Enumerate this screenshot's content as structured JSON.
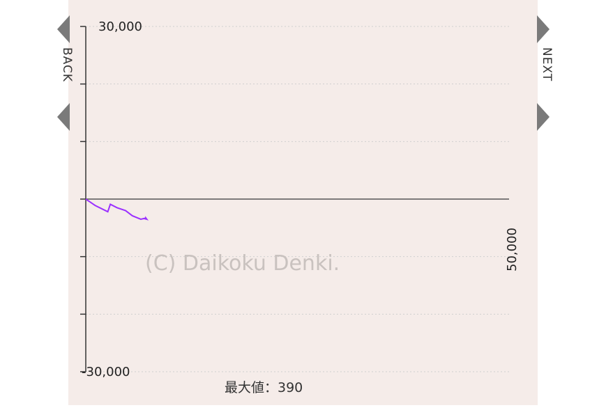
{
  "nav": {
    "back_label": "BACK",
    "next_label": "NEXT"
  },
  "watermark": "(C) Daikoku Denki.",
  "footer": {
    "max_value_label": "最大値：390"
  },
  "colors": {
    "series": "#9b30ff",
    "zero_line": "#555555",
    "grid": "#cfcfcf",
    "background": "#f5ece9"
  },
  "chart_data": {
    "type": "line",
    "title": "",
    "xlabel": "",
    "ylabel": "",
    "xlim": [
      0,
      50000
    ],
    "ylim": [
      -30000,
      30000
    ],
    "y_tick_labels": [
      {
        "value": 30000,
        "label": "30,000"
      },
      {
        "value": -30000,
        "label": "-30,000"
      }
    ],
    "x_end_label": "50,000",
    "y_minor_ticks": [
      30000,
      20000,
      10000,
      0,
      -10000,
      -20000,
      -30000
    ],
    "grid": true,
    "series": [
      {
        "values": [
          [
            0,
            0
          ],
          [
            1100,
            -1100
          ],
          [
            2600,
            -2200
          ],
          [
            2900,
            -900
          ],
          [
            3700,
            -1500
          ],
          [
            4700,
            -2000
          ],
          [
            5500,
            -2900
          ],
          [
            6500,
            -3500
          ],
          [
            7100,
            -3300
          ],
          [
            7100,
            -3300
          ],
          [
            7200,
            -3500
          ],
          [
            7000,
            -3400
          ],
          [
            7000,
            -3400
          ],
          [
            7100,
            -3400
          ],
          [
            7000,
            -3400
          ],
          [
            7000,
            -3400
          ],
          [
            7000,
            -3400
          ],
          [
            7100,
            -3400
          ],
          [
            7100,
            -3300
          ],
          [
            7200,
            -3500
          ],
          [
            7200,
            -3500
          ],
          [
            7200,
            -3500
          ],
          [
            7100,
            -3400
          ],
          [
            7000,
            -3400
          ],
          [
            7000,
            -3400
          ],
          [
            7000,
            -3400
          ],
          [
            7100,
            -3300
          ],
          [
            7000,
            -3400
          ],
          [
            7000,
            -3400
          ],
          [
            7100,
            -3400
          ],
          [
            7000,
            -3400
          ],
          [
            7000,
            -3400
          ],
          [
            7000,
            -3400
          ],
          [
            7100,
            -3400
          ],
          [
            7200,
            -3500
          ],
          [
            7200,
            -3500
          ],
          [
            7200,
            -3500
          ],
          [
            7000,
            -3400
          ],
          [
            7000,
            -3400
          ],
          [
            7100,
            -3400
          ],
          [
            7000,
            -3400
          ],
          [
            7000,
            -3400
          ],
          [
            7000,
            -3400
          ],
          [
            7100,
            -3300
          ],
          [
            7100,
            -3300
          ],
          [
            7000,
            -3400
          ],
          [
            7000,
            -3400
          ],
          [
            7100,
            -3400
          ],
          [
            7000,
            -3400
          ],
          [
            7000,
            -3400
          ],
          [
            7100,
            -3500
          ]
        ]
      }
    ]
  }
}
